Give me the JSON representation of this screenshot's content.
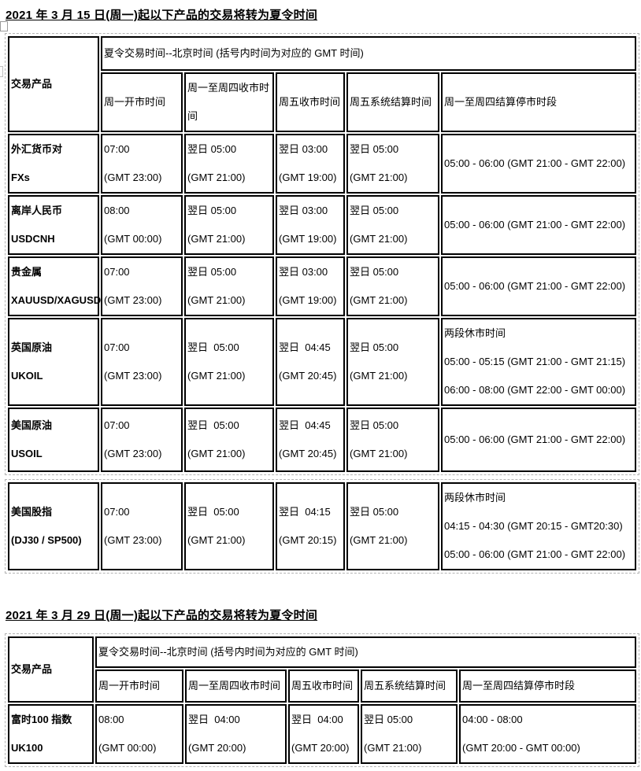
{
  "sections": [
    {
      "title": "2021 年 3 月 15 日(周一)起以下产品的交易将转为夏令时间",
      "tables": [
        {
          "corner_header": "交易产品",
          "merged_header": "夏令交易时间--北京时间 (括号内时间为对应的 GMT 时间)",
          "column_headers": [
            [
              "周一开市时间"
            ],
            [
              "周一至周四收市时",
              "间"
            ],
            [
              "周五收市时间"
            ],
            [
              "周五系统结算时间"
            ],
            [
              "周一至周四结算停市时段"
            ]
          ],
          "rows": [
            {
              "product": [
                "外汇货币对",
                "FXs"
              ],
              "cells": [
                [
                  "07:00",
                  "(GMT 23:00)"
                ],
                [
                  "翌日 05:00",
                  "(GMT 21:00)"
                ],
                [
                  "翌日 03:00",
                  "(GMT 19:00)"
                ],
                [
                  "翌日 05:00",
                  "(GMT 21:00)"
                ],
                [
                  "05:00 - 06:00 (GMT 21:00 - GMT 22:00)"
                ]
              ]
            },
            {
              "product": [
                "离岸人民币",
                "USDCNH"
              ],
              "cells": [
                [
                  "08:00",
                  "(GMT 00:00)"
                ],
                [
                  "翌日 05:00",
                  "(GMT 21:00)"
                ],
                [
                  "翌日 03:00",
                  "(GMT 19:00)"
                ],
                [
                  "翌日 05:00",
                  "(GMT 21:00)"
                ],
                [
                  "05:00 - 06:00 (GMT 21:00 - GMT 22:00)"
                ]
              ]
            },
            {
              "product": [
                "贵金属",
                "XAUUSD/XAGUSD"
              ],
              "cells": [
                [
                  "07:00",
                  "(GMT 23:00)"
                ],
                [
                  "翌日 05:00",
                  "(GMT 21:00)"
                ],
                [
                  "翌日 03:00",
                  "(GMT 19:00)"
                ],
                [
                  "翌日 05:00",
                  "(GMT 21:00)"
                ],
                [
                  "05:00 - 06:00 (GMT 21:00 - GMT 22:00)"
                ]
              ]
            },
            {
              "product": [
                "英国原油",
                "UKOIL"
              ],
              "cells": [
                [
                  "07:00",
                  "(GMT 23:00)"
                ],
                [
                  "翌日  05:00",
                  "(GMT 21:00)"
                ],
                [
                  "翌日  04:45",
                  "(GMT 20:45)"
                ],
                [
                  "翌日 05:00",
                  "(GMT 21:00)"
                ],
                [
                  "两段休市时间",
                  "05:00 - 05:15 (GMT 21:00 - GMT 21:15)",
                  "06:00 - 08:00 (GMT 22:00 - GMT 00:00)"
                ]
              ]
            },
            {
              "product": [
                "美国原油",
                "USOIL"
              ],
              "cells": [
                [
                  "07:00",
                  "(GMT 23:00)"
                ],
                [
                  "翌日  05:00",
                  "(GMT 21:00)"
                ],
                [
                  "翌日  04:45",
                  "(GMT 20:45)"
                ],
                [
                  "翌日 05:00",
                  "(GMT 21:00)"
                ],
                [
                  "05:00 - 06:00 (GMT 21:00 - GMT 22:00)"
                ]
              ]
            }
          ]
        },
        {
          "rows": [
            {
              "product": [
                "美国股指",
                "(DJ30 / SP500)"
              ],
              "cells": [
                [
                  "07:00",
                  "(GMT 23:00)"
                ],
                [
                  "翌日  05:00",
                  "(GMT 21:00)"
                ],
                [
                  "翌日  04:15",
                  "(GMT 20:15)"
                ],
                [
                  "翌日 05:00",
                  "(GMT 21:00)"
                ],
                [
                  "两段休市时间",
                  "04:15 - 04:30 (GMT 20:15 - GMT20:30)",
                  "05:00 - 06:00 (GMT 21:00 - GMT 22:00)"
                ]
              ]
            }
          ]
        }
      ]
    },
    {
      "title": "2021 年 3 月 29 日(周一)起以下产品的交易将转为夏令时间",
      "tables": [
        {
          "corner_header": "交易产品",
          "merged_header": "夏令交易时间--北京时间 (括号内时间为对应的 GMT 时间)",
          "column_headers": [
            [
              "周一开市时间"
            ],
            [
              "周一至周四收市时间"
            ],
            [
              "周五收市时间"
            ],
            [
              "周五系统结算时间"
            ],
            [
              "周一至周四结算停市时段"
            ]
          ],
          "rows": [
            {
              "product": [
                "富时100 指数",
                "UK100"
              ],
              "cells": [
                [
                  "08:00",
                  "(GMT 00:00)"
                ],
                [
                  "翌日  04:00",
                  "(GMT 20:00)"
                ],
                [
                  "翌日  04:00",
                  "(GMT 20:00)"
                ],
                [
                  "翌日 05:00",
                  "(GMT 21:00)"
                ],
                [
                  "04:00 - 08:00",
                  "(GMT 20:00 - GMT 00:00)"
                ]
              ]
            }
          ]
        }
      ]
    }
  ],
  "colors": {
    "cell_border": "#000000",
    "outer_dashed_border": "#b3b3b3",
    "text": "#000000",
    "background": "#ffffff"
  }
}
